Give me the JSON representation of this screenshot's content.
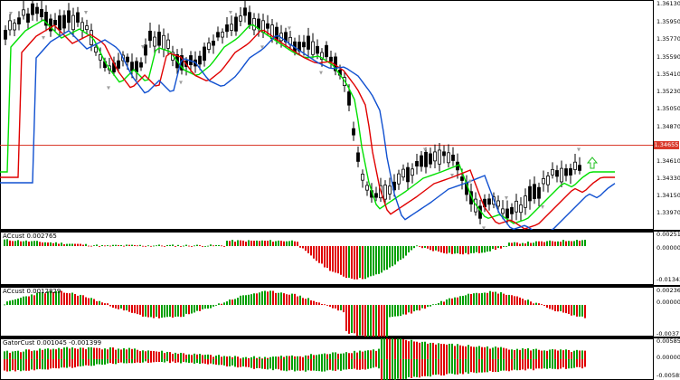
{
  "colors": {
    "background": "#ffffff",
    "frame": "#000000",
    "bull_bar": "#00a000",
    "bear_bar": "#e00000",
    "ma_fast": "#00e000",
    "ma_mid": "#e00000",
    "ma_slow": "#1050d0",
    "current_price_line": "#d93a2b",
    "arrow_up": "#20c020",
    "fractal_marker": "#a0a0a0"
  },
  "price_chart": {
    "y_ticks": [
      "1.36130",
      "1.35950",
      "1.35770",
      "1.35590",
      "1.35410",
      "1.35230",
      "1.35050",
      "1.34870",
      "1.34610",
      "1.34330",
      "1.34150",
      "1.33970"
    ],
    "current_price": "1.34655",
    "signal_icon": "arrow-up-icon"
  },
  "indicators": [
    {
      "label": "ACcust 0.002765",
      "axis_top": "0.002519",
      "axis_mid": "0.000000",
      "axis_bottom": "-0.013427"
    },
    {
      "label": "ACcust 0.0012829",
      "axis_top": "0.0023653",
      "axis_mid": "0.0000000",
      "axis_bottom": "-0.0037190"
    },
    {
      "label": "GatorCust 0.001045 -0.001399",
      "axis_top": "0.005851",
      "axis_mid": "0.000000",
      "axis_bottom": "-0.005851"
    }
  ]
}
